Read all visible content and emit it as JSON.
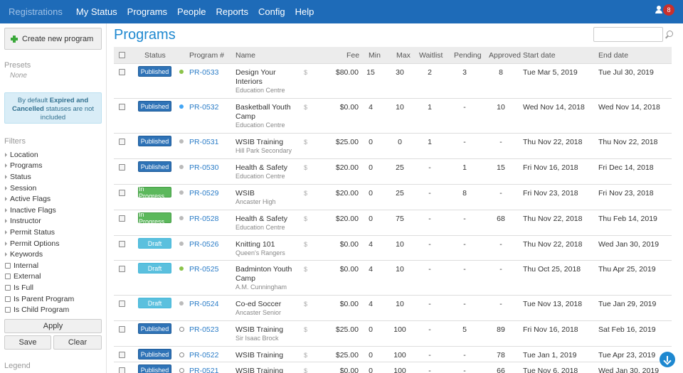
{
  "nav": {
    "brand": "Registrations",
    "items": [
      "My Status",
      "Programs",
      "People",
      "Reports",
      "Config",
      "Help"
    ],
    "notifications": "8"
  },
  "sidebar": {
    "create_label": "Create new program",
    "presets_heading": "Presets",
    "presets_none": "None",
    "info_prefix": "By default ",
    "info_bold": "Expired and Cancelled",
    "info_suffix": " statuses are not included",
    "filters_heading": "Filters",
    "filters": [
      "Location",
      "Programs",
      "Status",
      "Session",
      "Active Flags",
      "Inactive Flags",
      "Instructor",
      "Permit Status",
      "Permit Options",
      "Keywords"
    ],
    "checkboxes": [
      "Internal",
      "External",
      "Is Full",
      "Is Parent Program",
      "Is Child Program"
    ],
    "apply_label": "Apply",
    "save_label": "Save",
    "clear_label": "Clear",
    "legend_heading": "Legend"
  },
  "main": {
    "title": "Programs",
    "search_placeholder": "",
    "columns": [
      "Status",
      "Program #",
      "Name",
      "Fee",
      "Min",
      "Max",
      "Waitlist",
      "Pending",
      "Approved",
      "Start date",
      "End date"
    ]
  },
  "rows": [
    {
      "status": "Published",
      "dot": "green",
      "num": "PR-0533",
      "name": [
        "Design Your",
        "Interiors"
      ],
      "sub": "Education Centre",
      "fee": "$80.00",
      "min": "15",
      "max": "30",
      "waitlist": "2",
      "pending": "3",
      "approved": "8",
      "start": "Tue Mar 5, 2019",
      "end": "Tue Jul 30, 2019"
    },
    {
      "status": "Published",
      "dot": "blue",
      "num": "PR-0532",
      "name": [
        "Basketball Youth",
        "Camp"
      ],
      "sub": "Education Centre",
      "fee": "$0.00",
      "min": "4",
      "max": "10",
      "waitlist": "1",
      "pending": "-",
      "approved": "10",
      "start": "Wed Nov 14, 2018",
      "end": "Wed Nov 14, 2018"
    },
    {
      "status": "Published",
      "dot": "gray",
      "num": "PR-0531",
      "name": [
        "WSIB Training"
      ],
      "sub": "Hill Park Secondary",
      "fee": "$25.00",
      "min": "0",
      "max": "0",
      "waitlist": "1",
      "pending": "-",
      "approved": "-",
      "start": "Thu Nov 22, 2018",
      "end": "Thu Nov 22, 2018"
    },
    {
      "status": "Published",
      "dot": "gray",
      "num": "PR-0530",
      "name": [
        "Health & Safety"
      ],
      "sub": "Education Centre",
      "fee": "$20.00",
      "min": "0",
      "max": "25",
      "waitlist": "-",
      "pending": "1",
      "approved": "15",
      "start": "Fri Nov 16, 2018",
      "end": "Fri Dec 14, 2018"
    },
    {
      "status": "In Progress",
      "dot": "gray",
      "num": "PR-0529",
      "name": [
        "WSIB"
      ],
      "sub": "Ancaster High",
      "fee": "$20.00",
      "min": "0",
      "max": "25",
      "waitlist": "-",
      "pending": "8",
      "approved": "-",
      "start": "Fri Nov 23, 2018",
      "end": "Fri Nov 23, 2018"
    },
    {
      "status": "In Progress",
      "dot": "gray",
      "num": "PR-0528",
      "name": [
        "Health & Safety"
      ],
      "sub": "Education Centre",
      "fee": "$20.00",
      "min": "0",
      "max": "75",
      "waitlist": "-",
      "pending": "-",
      "approved": "68",
      "start": "Thu Nov 22, 2018",
      "end": "Thu Feb 14, 2019"
    },
    {
      "status": "Draft",
      "dot": "gray",
      "num": "PR-0526",
      "name": [
        "Knitting 101"
      ],
      "sub": "Queen's Rangers",
      "fee": "$0.00",
      "min": "4",
      "max": "10",
      "waitlist": "-",
      "pending": "-",
      "approved": "-",
      "start": "Thu Nov 22, 2018",
      "end": "Wed Jan 30, 2019"
    },
    {
      "status": "Draft",
      "dot": "green",
      "num": "PR-0525",
      "name": [
        "Badminton Youth",
        "Camp"
      ],
      "sub": "A.M. Cunningham",
      "fee": "$0.00",
      "min": "4",
      "max": "10",
      "waitlist": "-",
      "pending": "-",
      "approved": "-",
      "start": "Thu Oct 25, 2018",
      "end": "Thu Apr 25, 2019"
    },
    {
      "status": "Draft",
      "dot": "gray",
      "num": "PR-0524",
      "name": [
        "Co-ed Soccer"
      ],
      "sub": "Ancaster Senior",
      "fee": "$0.00",
      "min": "4",
      "max": "10",
      "waitlist": "-",
      "pending": "-",
      "approved": "-",
      "start": "Tue Nov 13, 2018",
      "end": "Tue Jan 29, 2019"
    },
    {
      "status": "Published",
      "dot": "ring",
      "num": "PR-0523",
      "name": [
        "WSIB Training"
      ],
      "sub": "Sir Isaac Brock",
      "fee": "$25.00",
      "min": "0",
      "max": "100",
      "waitlist": "-",
      "pending": "5",
      "approved": "89",
      "start": "Fri Nov 16, 2018",
      "end": "Sat Feb 16, 2019"
    },
    {
      "status": "Published",
      "dot": "ring",
      "num": "PR-0522",
      "name": [
        "WSIB Training"
      ],
      "sub": "",
      "fee": "$25.00",
      "min": "0",
      "max": "100",
      "waitlist": "-",
      "pending": "-",
      "approved": "78",
      "start": "Tue Jan 1, 2019",
      "end": "Tue Apr 23, 2019"
    },
    {
      "status": "Published",
      "dot": "ring",
      "num": "PR-0521",
      "name": [
        "WSIB Training"
      ],
      "sub": "",
      "fee": "$0.00",
      "min": "0",
      "max": "100",
      "waitlist": "-",
      "pending": "-",
      "approved": "66",
      "start": "Tue Nov 6, 2018",
      "end": "Wed Jan 30, 2019"
    }
  ]
}
